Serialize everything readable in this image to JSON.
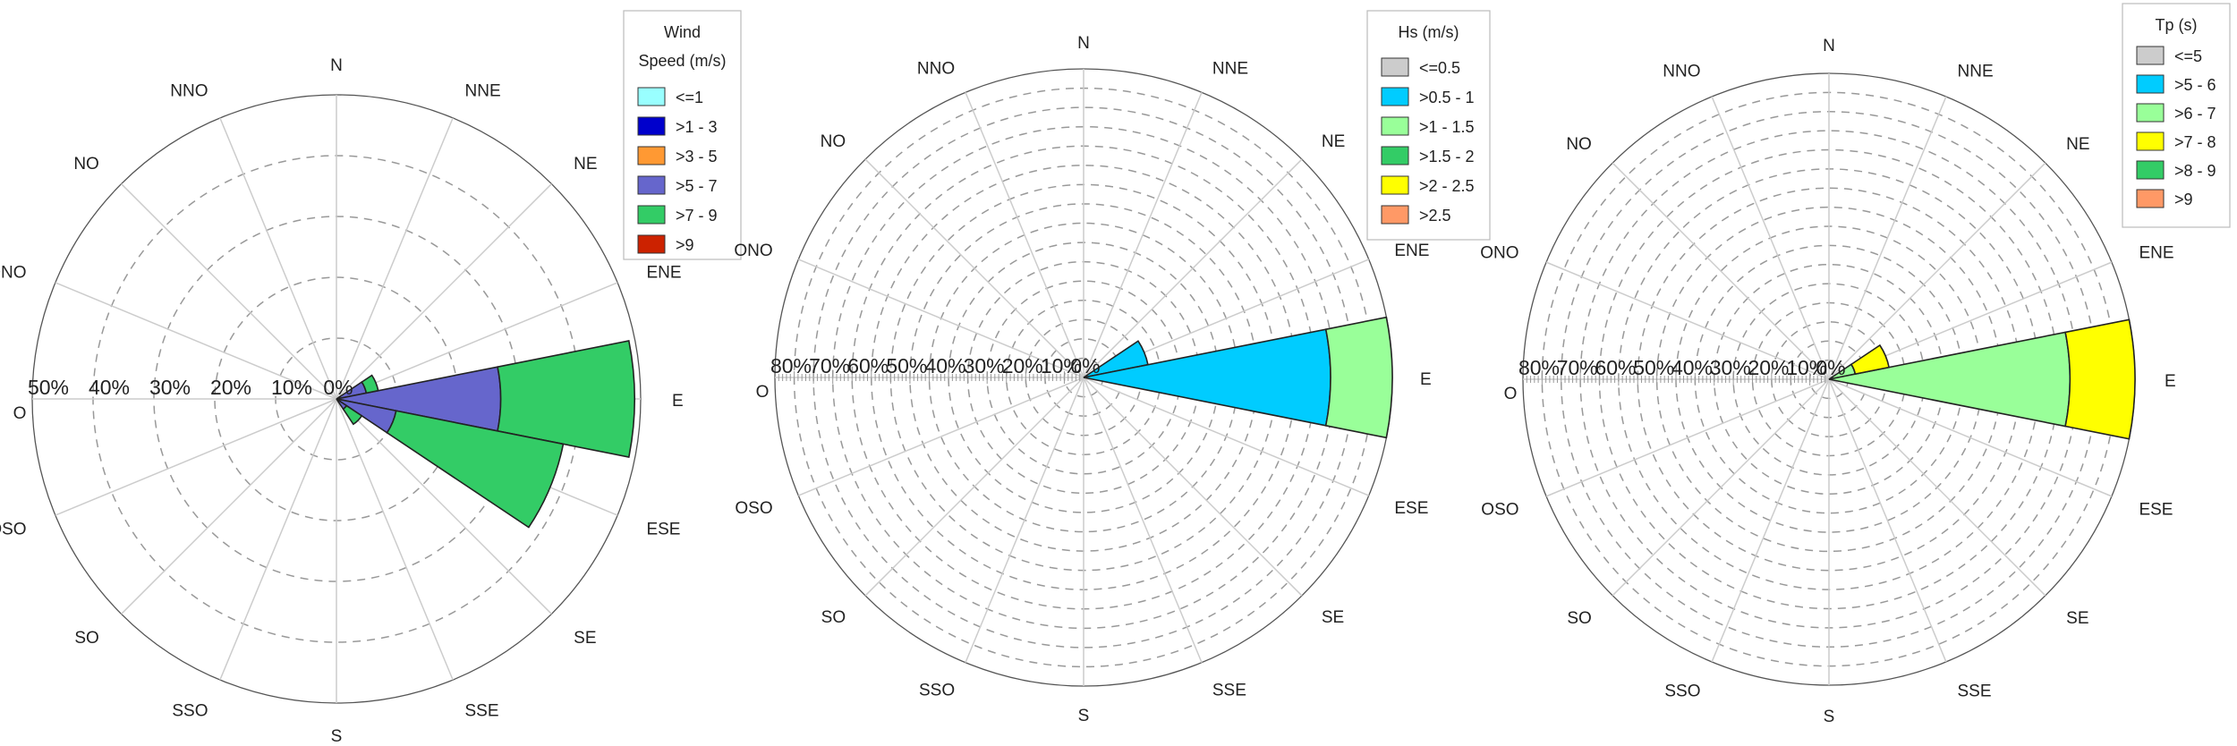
{
  "chart_data": [
    {
      "type": "windrose",
      "legend_title_lines": [
        "Wind",
        "Speed (m/s)"
      ],
      "directions": [
        "N",
        "NNE",
        "NE",
        "ENE",
        "E",
        "ESE",
        "SE",
        "SSE",
        "S",
        "SSO",
        "SO",
        "OSO",
        "O",
        "ONO",
        "NO",
        "NNO"
      ],
      "radial_tick_labels": [
        "0%",
        "10%",
        "20%",
        "30%",
        "40%",
        "50%"
      ],
      "rmax": 50,
      "series": [
        {
          "name": "<=1",
          "color": "#99FFFF",
          "values": [
            0,
            0,
            0,
            0,
            0,
            0,
            0,
            0,
            0,
            0,
            0,
            0,
            0,
            0,
            0,
            0
          ]
        },
        {
          "name": ">1 - 3",
          "color": "#0000CC",
          "values": [
            0,
            0,
            0,
            0,
            0,
            0,
            0,
            0,
            0,
            0,
            0,
            0,
            0,
            0,
            0,
            0
          ]
        },
        {
          "name": ">3 - 5",
          "color": "#FF9933",
          "values": [
            0,
            0,
            0,
            0,
            0,
            0,
            0,
            0,
            0,
            0,
            0,
            0,
            0,
            0,
            0,
            0
          ]
        },
        {
          "name": ">5 - 7",
          "color": "#6666CC",
          "values": [
            0,
            0,
            0,
            5,
            27,
            10,
            2,
            0,
            0,
            0,
            0,
            0,
            0,
            0,
            0,
            0
          ]
        },
        {
          "name": ">7 - 9",
          "color": "#33CC66",
          "values": [
            0,
            0,
            0,
            2,
            22,
            28,
            3,
            0,
            0,
            0,
            0,
            0,
            0,
            0,
            0,
            0
          ]
        },
        {
          "name": ">9",
          "color": "#CC2200",
          "values": [
            0,
            0,
            0,
            0,
            0,
            0,
            0,
            0,
            0,
            0,
            0,
            0,
            0,
            0,
            0,
            0
          ]
        }
      ]
    },
    {
      "type": "windrose",
      "legend_title_lines": [
        "Hs (m/s)"
      ],
      "directions": [
        "N",
        "NNE",
        "NE",
        "ENE",
        "E",
        "ESE",
        "SE",
        "SSE",
        "S",
        "SSO",
        "SO",
        "OSO",
        "O",
        "ONO",
        "NO",
        "NNO"
      ],
      "radial_tick_labels": [
        "0%",
        "10%",
        "20%",
        "30%",
        "40%",
        "50%",
        "60%",
        "70%",
        "80%"
      ],
      "rmax": 80,
      "series": [
        {
          "name": "<=0.5",
          "color": "#CCCCCC",
          "values": [
            0,
            0,
            0,
            0,
            0,
            0,
            0,
            0,
            0,
            0,
            0,
            0,
            0,
            0,
            0,
            0
          ]
        },
        {
          "name": ">0.5 - 1",
          "color": "#00CCFF",
          "values": [
            0,
            0,
            0,
            17,
            64,
            0,
            0,
            0,
            0,
            0,
            0,
            0,
            0,
            0,
            0,
            0
          ]
        },
        {
          "name": ">1 - 1.5",
          "color": "#99FF99",
          "values": [
            0,
            0,
            0,
            0,
            16,
            0,
            0,
            0,
            0,
            0,
            0,
            0,
            0,
            0,
            0,
            0
          ]
        },
        {
          "name": ">1.5 - 2",
          "color": "#33CC66",
          "values": [
            0,
            0,
            0,
            0,
            0,
            0,
            0,
            0,
            0,
            0,
            0,
            0,
            0,
            0,
            0,
            0
          ]
        },
        {
          "name": ">2 - 2.5",
          "color": "#FFFF00",
          "values": [
            0,
            0,
            0,
            0,
            0,
            0,
            0,
            0,
            0,
            0,
            0,
            0,
            0,
            0,
            0,
            0
          ]
        },
        {
          "name": ">2.5",
          "color": "#FF9966",
          "values": [
            0,
            0,
            0,
            0,
            0,
            0,
            0,
            0,
            0,
            0,
            0,
            0,
            0,
            0,
            0,
            0
          ]
        }
      ]
    },
    {
      "type": "windrose",
      "legend_title_lines": [
        "Tp (s)"
      ],
      "directions": [
        "N",
        "NNE",
        "NE",
        "ENE",
        "E",
        "ESE",
        "SE",
        "SSE",
        "S",
        "SSO",
        "SO",
        "OSO",
        "O",
        "ONO",
        "NO",
        "NNO"
      ],
      "radial_tick_labels": [
        "0%",
        "10%",
        "20%",
        "30%",
        "40%",
        "50%",
        "60%",
        "70%",
        "80%"
      ],
      "rmax": 80,
      "series": [
        {
          "name": "<=5",
          "color": "#CCCCCC",
          "values": [
            0,
            0,
            0,
            0,
            0,
            0,
            0,
            0,
            0,
            0,
            0,
            0,
            0,
            0,
            0,
            0
          ]
        },
        {
          "name": ">5 - 6",
          "color": "#00CCFF",
          "values": [
            0,
            0,
            0,
            0,
            0,
            0,
            0,
            0,
            0,
            0,
            0,
            0,
            0,
            0,
            0,
            0
          ]
        },
        {
          "name": ">6 - 7",
          "color": "#99FF99",
          "values": [
            0,
            0,
            0,
            7,
            63,
            0,
            0,
            0,
            0,
            0,
            0,
            0,
            0,
            0,
            0,
            0
          ]
        },
        {
          "name": ">7 - 8",
          "color": "#FFFF00",
          "values": [
            0,
            0,
            0,
            9,
            17,
            0,
            0,
            0,
            0,
            0,
            0,
            0,
            0,
            0,
            0,
            0
          ]
        },
        {
          "name": ">8 - 9",
          "color": "#33CC66",
          "values": [
            0,
            0,
            0,
            0,
            0,
            0,
            0,
            0,
            0,
            0,
            0,
            0,
            0,
            0,
            0,
            0
          ]
        },
        {
          "name": ">9",
          "color": "#FF9966",
          "values": [
            0,
            0,
            0,
            0,
            0,
            0,
            0,
            0,
            0,
            0,
            0,
            0,
            0,
            0,
            0,
            0
          ]
        }
      ]
    }
  ]
}
